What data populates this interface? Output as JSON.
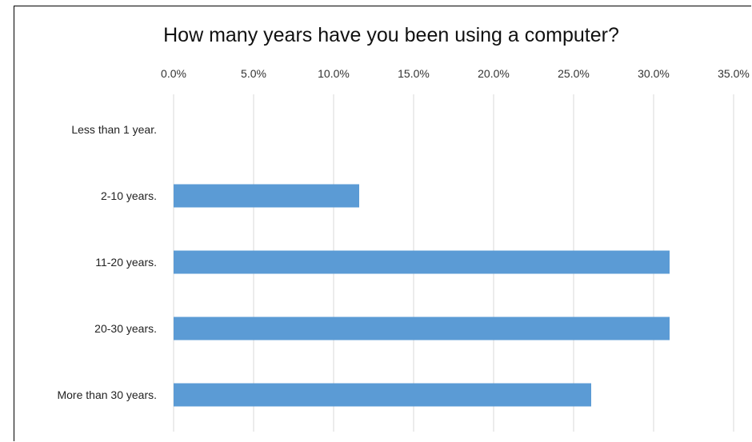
{
  "chart_data": {
    "type": "bar",
    "orientation": "horizontal",
    "title": "How many years have you been using a computer?",
    "categories": [
      "Less than 1 year.",
      "2-10 years.",
      "11-20 years.",
      "20-30 years.",
      "More than 30 years."
    ],
    "values": [
      0.0,
      11.6,
      31.0,
      31.0,
      26.1
    ],
    "x_ticks": [
      "0.0%",
      "5.0%",
      "10.0%",
      "15.0%",
      "20.0%",
      "25.0%",
      "30.0%",
      "35.0%"
    ],
    "xlim": [
      0,
      35
    ],
    "x_axis_position": "top",
    "grid": true,
    "bar_color": "#5B9BD5",
    "grid_color": "#D9D9D9"
  }
}
